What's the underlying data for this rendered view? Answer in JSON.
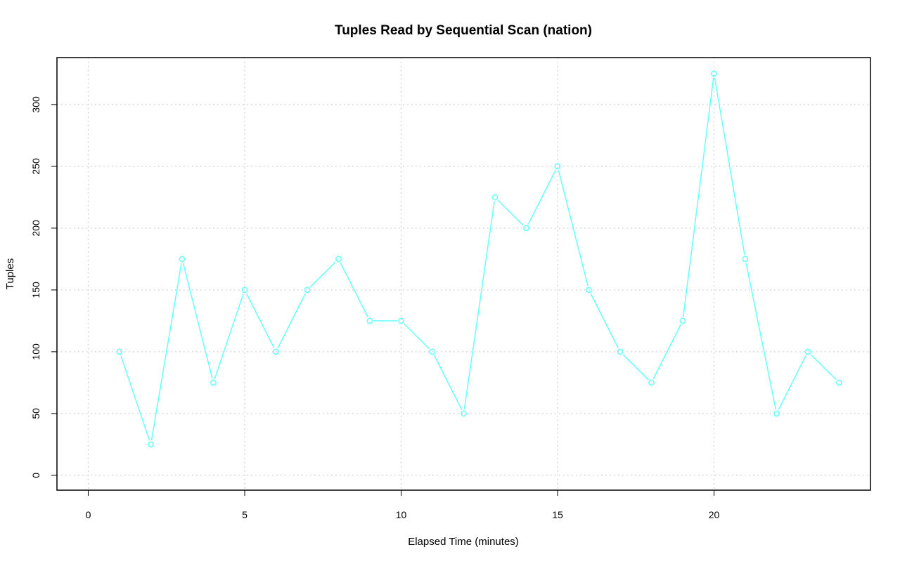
{
  "chart_data": {
    "type": "line",
    "title": "Tuples Read by Sequential Scan (nation)",
    "xlabel": "Elapsed Time (minutes)",
    "ylabel": "Tuples",
    "xlim": [
      -1,
      25
    ],
    "ylim": [
      -12,
      338
    ],
    "x_ticks": [
      0,
      5,
      10,
      15,
      20
    ],
    "y_ticks": [
      0,
      50,
      100,
      150,
      200,
      250,
      300
    ],
    "grid": true,
    "grid_style": "dotted",
    "series": [
      {
        "color": "#66ffff",
        "marker": "open-circle",
        "x": [
          1,
          2,
          3,
          4,
          5,
          6,
          7,
          8,
          9,
          10,
          11,
          12,
          13,
          14,
          15,
          16,
          17,
          18,
          19,
          20,
          21,
          22,
          23,
          24
        ],
        "y": [
          100,
          25,
          175,
          75,
          150,
          100,
          150,
          175,
          125,
          125,
          100,
          50,
          225,
          200,
          250,
          150,
          100,
          75,
          125,
          325,
          175,
          50,
          100,
          75
        ]
      }
    ]
  }
}
